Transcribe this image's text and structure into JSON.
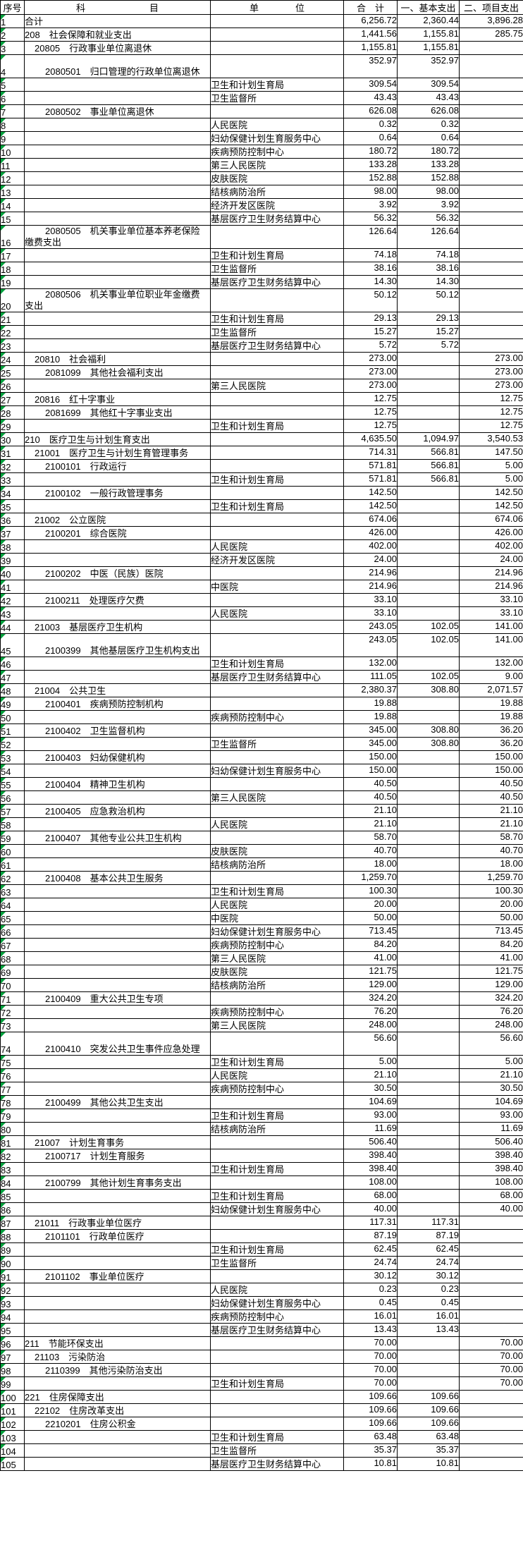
{
  "colors": {
    "grid_line": "#000000",
    "background": "#FFFFFF",
    "error_indicator": "#00A03C",
    "text": "#000000"
  },
  "table": {
    "headers": {
      "sn": "序号",
      "subject": "科　　　　　　　目",
      "unit": "单　　　　位",
      "total": "合　计",
      "basic": "一、基本支出",
      "project": "二、项目支出"
    }
  },
  "rows": [
    [
      "1",
      "合计",
      0,
      "",
      "6,256.72",
      "2,360.44",
      "3,896.28",
      0
    ],
    [
      "2",
      "208　社会保障和就业支出",
      0,
      "",
      "1,441.56",
      "1,155.81",
      "285.75",
      0
    ],
    [
      "3",
      "20805　行政事业单位离退休",
      1,
      "",
      "1,155.81",
      "1,155.81",
      "",
      0
    ],
    [
      "4",
      "2080501　归口管理的行政单位离退休",
      2,
      "",
      "352.97",
      "352.97",
      "",
      1
    ],
    [
      "5",
      "",
      0,
      "卫生和计划生育局",
      "309.54",
      "309.54",
      "",
      0
    ],
    [
      "6",
      "",
      0,
      "卫生监督所",
      "43.43",
      "43.43",
      "",
      0
    ],
    [
      "7",
      "2080502　事业单位离退休",
      2,
      "",
      "626.08",
      "626.08",
      "",
      0
    ],
    [
      "8",
      "",
      0,
      "人民医院",
      "0.32",
      "0.32",
      "",
      0
    ],
    [
      "9",
      "",
      0,
      "妇幼保健计划生育服务中心",
      "0.64",
      "0.64",
      "",
      0
    ],
    [
      "10",
      "",
      0,
      "疾病预防控制中心",
      "180.72",
      "180.72",
      "",
      0
    ],
    [
      "11",
      "",
      0,
      "第三人民医院",
      "133.28",
      "133.28",
      "",
      0
    ],
    [
      "12",
      "",
      0,
      "皮肤医院",
      "152.88",
      "152.88",
      "",
      0
    ],
    [
      "13",
      "",
      0,
      "结核病防治所",
      "98.00",
      "98.00",
      "",
      0
    ],
    [
      "14",
      "",
      0,
      "经济开发区医院",
      "3.92",
      "3.92",
      "",
      0
    ],
    [
      "15",
      "",
      0,
      "基层医疗卫生财务结算中心",
      "56.32",
      "56.32",
      "",
      0
    ],
    [
      "16",
      "2080505　机关事业单位基本养老保险\n缴费支出",
      2,
      "",
      "126.64",
      "126.64",
      "",
      1
    ],
    [
      "17",
      "",
      0,
      "卫生和计划生育局",
      "74.18",
      "74.18",
      "",
      0
    ],
    [
      "18",
      "",
      0,
      "卫生监督所",
      "38.16",
      "38.16",
      "",
      0
    ],
    [
      "19",
      "",
      0,
      "基层医疗卫生财务结算中心",
      "14.30",
      "14.30",
      "",
      0
    ],
    [
      "20",
      "2080506　机关事业单位职业年金缴费\n支出",
      2,
      "",
      "50.12",
      "50.12",
      "",
      1
    ],
    [
      "21",
      "",
      0,
      "卫生和计划生育局",
      "29.13",
      "29.13",
      "",
      0
    ],
    [
      "22",
      "",
      0,
      "卫生监督所",
      "15.27",
      "15.27",
      "",
      0
    ],
    [
      "23",
      "",
      0,
      "基层医疗卫生财务结算中心",
      "5.72",
      "5.72",
      "",
      0
    ],
    [
      "24",
      "20810　社会福利",
      1,
      "",
      "273.00",
      "",
      "273.00",
      0
    ],
    [
      "25",
      "2081099　其他社会福利支出",
      2,
      "",
      "273.00",
      "",
      "273.00",
      0
    ],
    [
      "26",
      "",
      0,
      "第三人民医院",
      "273.00",
      "",
      "273.00",
      0
    ],
    [
      "27",
      "20816　红十字事业",
      1,
      "",
      "12.75",
      "",
      "12.75",
      0
    ],
    [
      "28",
      "2081699　其他红十字事业支出",
      2,
      "",
      "12.75",
      "",
      "12.75",
      0
    ],
    [
      "29",
      "",
      0,
      "卫生和计划生育局",
      "12.75",
      "",
      "12.75",
      0
    ],
    [
      "30",
      "210　医疗卫生与计划生育支出",
      0,
      "",
      "4,635.50",
      "1,094.97",
      "3,540.53",
      0
    ],
    [
      "31",
      "21001　医疗卫生与计划生育管理事务",
      1,
      "",
      "714.31",
      "566.81",
      "147.50",
      0
    ],
    [
      "32",
      "2100101　行政运行",
      2,
      "",
      "571.81",
      "566.81",
      "5.00",
      0
    ],
    [
      "33",
      "",
      0,
      "卫生和计划生育局",
      "571.81",
      "566.81",
      "5.00",
      0
    ],
    [
      "34",
      "2100102　一般行政管理事务",
      2,
      "",
      "142.50",
      "",
      "142.50",
      0
    ],
    [
      "35",
      "",
      0,
      "卫生和计划生育局",
      "142.50",
      "",
      "142.50",
      0
    ],
    [
      "36",
      "21002　公立医院",
      1,
      "",
      "674.06",
      "",
      "674.06",
      0
    ],
    [
      "37",
      "2100201　综合医院",
      2,
      "",
      "426.00",
      "",
      "426.00",
      0
    ],
    [
      "38",
      "",
      0,
      "人民医院",
      "402.00",
      "",
      "402.00",
      0
    ],
    [
      "39",
      "",
      0,
      "经济开发区医院",
      "24.00",
      "",
      "24.00",
      0
    ],
    [
      "40",
      "2100202　中医（民族）医院",
      2,
      "",
      "214.96",
      "",
      "214.96",
      0
    ],
    [
      "41",
      "",
      0,
      "中医院",
      "214.96",
      "",
      "214.96",
      0
    ],
    [
      "42",
      "2100211　处理医疗欠费",
      2,
      "",
      "33.10",
      "",
      "33.10",
      0
    ],
    [
      "43",
      "",
      0,
      "人民医院",
      "33.10",
      "",
      "33.10",
      0
    ],
    [
      "44",
      "21003　基层医疗卫生机构",
      1,
      "",
      "243.05",
      "102.05",
      "141.00",
      0
    ],
    [
      "45",
      "2100399　其他基层医疗卫生机构支出",
      2,
      "",
      "243.05",
      "102.05",
      "141.00",
      1
    ],
    [
      "46",
      "",
      0,
      "卫生和计划生育局",
      "132.00",
      "",
      "132.00",
      0
    ],
    [
      "47",
      "",
      0,
      "基层医疗卫生财务结算中心",
      "111.05",
      "102.05",
      "9.00",
      0
    ],
    [
      "48",
      "21004　公共卫生",
      1,
      "",
      "2,380.37",
      "308.80",
      "2,071.57",
      0
    ],
    [
      "49",
      "2100401　疾病预防控制机构",
      2,
      "",
      "19.88",
      "",
      "19.88",
      0
    ],
    [
      "50",
      "",
      0,
      "疾病预防控制中心",
      "19.88",
      "",
      "19.88",
      0
    ],
    [
      "51",
      "2100402　卫生监督机构",
      2,
      "",
      "345.00",
      "308.80",
      "36.20",
      0
    ],
    [
      "52",
      "",
      0,
      "卫生监督所",
      "345.00",
      "308.80",
      "36.20",
      0
    ],
    [
      "53",
      "2100403　妇幼保健机构",
      2,
      "",
      "150.00",
      "",
      "150.00",
      0
    ],
    [
      "54",
      "",
      0,
      "妇幼保健计划生育服务中心",
      "150.00",
      "",
      "150.00",
      0
    ],
    [
      "55",
      "2100404　精神卫生机构",
      2,
      "",
      "40.50",
      "",
      "40.50",
      0
    ],
    [
      "56",
      "",
      0,
      "第三人民医院",
      "40.50",
      "",
      "40.50",
      0
    ],
    [
      "57",
      "2100405　应急救治机构",
      2,
      "",
      "21.10",
      "",
      "21.10",
      0
    ],
    [
      "58",
      "",
      0,
      "人民医院",
      "21.10",
      "",
      "21.10",
      0
    ],
    [
      "59",
      "2100407　其他专业公共卫生机构",
      2,
      "",
      "58.70",
      "",
      "58.70",
      0
    ],
    [
      "60",
      "",
      0,
      "皮肤医院",
      "40.70",
      "",
      "40.70",
      0
    ],
    [
      "61",
      "",
      0,
      "结核病防治所",
      "18.00",
      "",
      "18.00",
      0
    ],
    [
      "62",
      "2100408　基本公共卫生服务",
      2,
      "",
      "1,259.70",
      "",
      "1,259.70",
      0
    ],
    [
      "63",
      "",
      0,
      "卫生和计划生育局",
      "100.30",
      "",
      "100.30",
      0
    ],
    [
      "64",
      "",
      0,
      "人民医院",
      "20.00",
      "",
      "20.00",
      0
    ],
    [
      "65",
      "",
      0,
      "中医院",
      "50.00",
      "",
      "50.00",
      0
    ],
    [
      "66",
      "",
      0,
      "妇幼保健计划生育服务中心",
      "713.45",
      "",
      "713.45",
      0
    ],
    [
      "67",
      "",
      0,
      "疾病预防控制中心",
      "84.20",
      "",
      "84.20",
      0
    ],
    [
      "68",
      "",
      0,
      "第三人民医院",
      "41.00",
      "",
      "41.00",
      0
    ],
    [
      "69",
      "",
      0,
      "皮肤医院",
      "121.75",
      "",
      "121.75",
      0
    ],
    [
      "70",
      "",
      0,
      "结核病防治所",
      "129.00",
      "",
      "129.00",
      0
    ],
    [
      "71",
      "2100409　重大公共卫生专项",
      2,
      "",
      "324.20",
      "",
      "324.20",
      0
    ],
    [
      "72",
      "",
      0,
      "疾病预防控制中心",
      "76.20",
      "",
      "76.20",
      0
    ],
    [
      "73",
      "",
      0,
      "第三人民医院",
      "248.00",
      "",
      "248.00",
      0
    ],
    [
      "74",
      "2100410　突发公共卫生事件应急处理",
      2,
      "",
      "56.60",
      "",
      "56.60",
      1
    ],
    [
      "75",
      "",
      0,
      "卫生和计划生育局",
      "5.00",
      "",
      "5.00",
      0
    ],
    [
      "76",
      "",
      0,
      "人民医院",
      "21.10",
      "",
      "21.10",
      0
    ],
    [
      "77",
      "",
      0,
      "疾病预防控制中心",
      "30.50",
      "",
      "30.50",
      0
    ],
    [
      "78",
      "2100499　其他公共卫生支出",
      2,
      "",
      "104.69",
      "",
      "104.69",
      0
    ],
    [
      "79",
      "",
      0,
      "卫生和计划生育局",
      "93.00",
      "",
      "93.00",
      0
    ],
    [
      "80",
      "",
      0,
      "结核病防治所",
      "11.69",
      "",
      "11.69",
      0
    ],
    [
      "81",
      "21007　计划生育事务",
      1,
      "",
      "506.40",
      "",
      "506.40",
      0
    ],
    [
      "82",
      "2100717　计划生育服务",
      2,
      "",
      "398.40",
      "",
      "398.40",
      0
    ],
    [
      "83",
      "",
      0,
      "卫生和计划生育局",
      "398.40",
      "",
      "398.40",
      0
    ],
    [
      "84",
      "2100799　其他计划生育事务支出",
      2,
      "",
      "108.00",
      "",
      "108.00",
      0
    ],
    [
      "85",
      "",
      0,
      "卫生和计划生育局",
      "68.00",
      "",
      "68.00",
      0
    ],
    [
      "86",
      "",
      0,
      "妇幼保健计划生育服务中心",
      "40.00",
      "",
      "40.00",
      0
    ],
    [
      "87",
      "21011　行政事业单位医疗",
      1,
      "",
      "117.31",
      "117.31",
      "",
      0
    ],
    [
      "88",
      "2101101　行政单位医疗",
      2,
      "",
      "87.19",
      "87.19",
      "",
      0
    ],
    [
      "89",
      "",
      0,
      "卫生和计划生育局",
      "62.45",
      "62.45",
      "",
      0
    ],
    [
      "90",
      "",
      0,
      "卫生监督所",
      "24.74",
      "24.74",
      "",
      0
    ],
    [
      "91",
      "2101102　事业单位医疗",
      2,
      "",
      "30.12",
      "30.12",
      "",
      0
    ],
    [
      "92",
      "",
      0,
      "人民医院",
      "0.23",
      "0.23",
      "",
      0
    ],
    [
      "93",
      "",
      0,
      "妇幼保健计划生育服务中心",
      "0.45",
      "0.45",
      "",
      0
    ],
    [
      "94",
      "",
      0,
      "疾病预防控制中心",
      "16.01",
      "16.01",
      "",
      0
    ],
    [
      "95",
      "",
      0,
      "基层医疗卫生财务结算中心",
      "13.43",
      "13.43",
      "",
      0
    ],
    [
      "96",
      "211　节能环保支出",
      0,
      "",
      "70.00",
      "",
      "70.00",
      0
    ],
    [
      "97",
      "21103　污染防治",
      1,
      "",
      "70.00",
      "",
      "70.00",
      0
    ],
    [
      "98",
      "2110399　其他污染防治支出",
      2,
      "",
      "70.00",
      "",
      "70.00",
      0
    ],
    [
      "99",
      "",
      0,
      "卫生和计划生育局",
      "70.00",
      "",
      "70.00",
      0
    ],
    [
      "100",
      "221　住房保障支出",
      0,
      "",
      "109.66",
      "109.66",
      "",
      0
    ],
    [
      "101",
      "22102　住房改革支出",
      1,
      "",
      "109.66",
      "109.66",
      "",
      0
    ],
    [
      "102",
      "2210201　住房公积金",
      2,
      "",
      "109.66",
      "109.66",
      "",
      0
    ],
    [
      "103",
      "",
      0,
      "卫生和计划生育局",
      "63.48",
      "63.48",
      "",
      0
    ],
    [
      "104",
      "",
      0,
      "卫生监督所",
      "35.37",
      "35.37",
      "",
      0
    ],
    [
      "105",
      "",
      0,
      "基层医疗卫生财务结算中心",
      "10.81",
      "10.81",
      "",
      0
    ]
  ]
}
